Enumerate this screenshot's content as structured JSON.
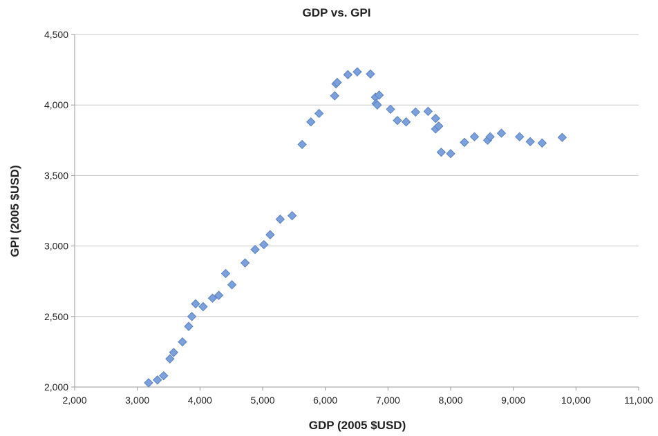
{
  "chart_data": {
    "type": "scatter",
    "title": "GDP vs. GPI",
    "xlabel": "GDP (2005 $USD)",
    "ylabel": "GPI (2005 $USD)",
    "xlim": [
      2000,
      11000
    ],
    "ylim": [
      2000,
      4500
    ],
    "xticks": [
      2000,
      3000,
      4000,
      5000,
      6000,
      7000,
      8000,
      9000,
      10000,
      11000
    ],
    "yticks": [
      2000,
      2500,
      3000,
      3500,
      4000,
      4500
    ],
    "xtick_labels": [
      "2,000",
      "3,000",
      "4,000",
      "5,000",
      "6,000",
      "7,000",
      "8,000",
      "9,000",
      "10,000",
      "11,000"
    ],
    "ytick_labels": [
      "2,000",
      "2,500",
      "3,000",
      "3,500",
      "4,000",
      "4,500"
    ],
    "grid": "horizontal",
    "marker_color": "#7ba0dc",
    "points": [
      {
        "x": 3180,
        "y": 2030
      },
      {
        "x": 3320,
        "y": 2050
      },
      {
        "x": 3420,
        "y": 2080
      },
      {
        "x": 3520,
        "y": 2200
      },
      {
        "x": 3580,
        "y": 2245
      },
      {
        "x": 3720,
        "y": 2320
      },
      {
        "x": 3820,
        "y": 2430
      },
      {
        "x": 3870,
        "y": 2500
      },
      {
        "x": 3930,
        "y": 2590
      },
      {
        "x": 4050,
        "y": 2570
      },
      {
        "x": 4200,
        "y": 2630
      },
      {
        "x": 4300,
        "y": 2650
      },
      {
        "x": 4410,
        "y": 2805
      },
      {
        "x": 4510,
        "y": 2725
      },
      {
        "x": 4720,
        "y": 2880
      },
      {
        "x": 4880,
        "y": 2975
      },
      {
        "x": 5020,
        "y": 3010
      },
      {
        "x": 5120,
        "y": 3080
      },
      {
        "x": 5280,
        "y": 3190
      },
      {
        "x": 5470,
        "y": 3215
      },
      {
        "x": 5630,
        "y": 3720
      },
      {
        "x": 5770,
        "y": 3880
      },
      {
        "x": 5900,
        "y": 3940
      },
      {
        "x": 6150,
        "y": 4065
      },
      {
        "x": 6170,
        "y": 4150
      },
      {
        "x": 6190,
        "y": 4160
      },
      {
        "x": 6360,
        "y": 4215
      },
      {
        "x": 6510,
        "y": 4235
      },
      {
        "x": 6720,
        "y": 4220
      },
      {
        "x": 6800,
        "y": 4055
      },
      {
        "x": 6810,
        "y": 4010
      },
      {
        "x": 6830,
        "y": 4000
      },
      {
        "x": 6860,
        "y": 4070
      },
      {
        "x": 7040,
        "y": 3970
      },
      {
        "x": 7150,
        "y": 3890
      },
      {
        "x": 7290,
        "y": 3880
      },
      {
        "x": 7440,
        "y": 3950
      },
      {
        "x": 7640,
        "y": 3955
      },
      {
        "x": 7760,
        "y": 3905
      },
      {
        "x": 7760,
        "y": 3830
      },
      {
        "x": 7810,
        "y": 3850
      },
      {
        "x": 7850,
        "y": 3665
      },
      {
        "x": 8000,
        "y": 3655
      },
      {
        "x": 8220,
        "y": 3735
      },
      {
        "x": 8380,
        "y": 3775
      },
      {
        "x": 8590,
        "y": 3750
      },
      {
        "x": 8630,
        "y": 3775
      },
      {
        "x": 8810,
        "y": 3800
      },
      {
        "x": 9100,
        "y": 3775
      },
      {
        "x": 9270,
        "y": 3740
      },
      {
        "x": 9460,
        "y": 3730
      },
      {
        "x": 9780,
        "y": 3770
      }
    ]
  }
}
